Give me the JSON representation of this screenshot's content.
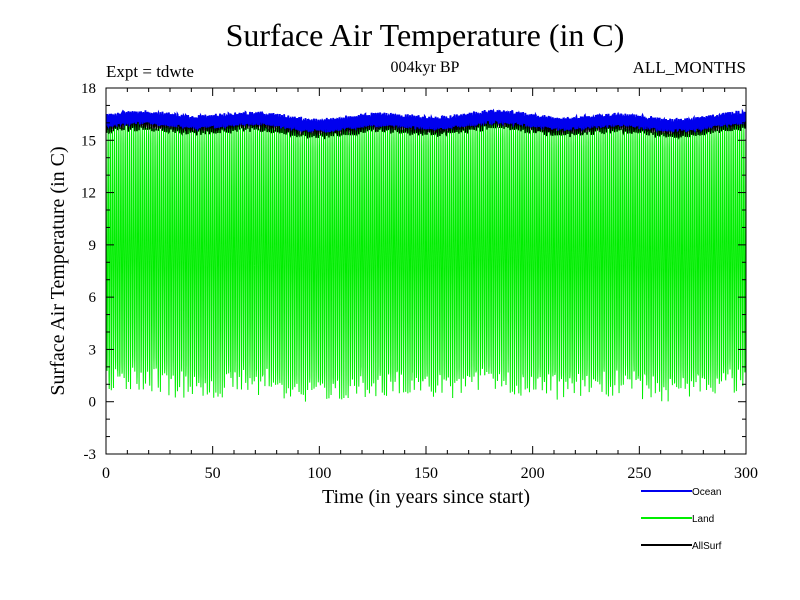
{
  "chart_data": {
    "type": "line",
    "title": "Surface Air Temperature (in C)",
    "subtitle": "004kyr BP",
    "experiment_label": "Expt = tdwte",
    "months_label": "ALL_MONTHS",
    "xlabel": "Time (in years since start)",
    "ylabel": "Surface Air Temperature (in C)",
    "xlim": [
      0,
      300
    ],
    "ylim": [
      -3,
      18
    ],
    "x_ticks": [
      0,
      50,
      100,
      150,
      200,
      250,
      300
    ],
    "x_tick_labels": [
      "0",
      "50",
      "100",
      "150",
      "200",
      "250",
      "300"
    ],
    "y_ticks": [
      -3,
      0,
      3,
      6,
      9,
      12,
      15,
      18
    ],
    "y_tick_labels": [
      "-3",
      "0",
      "3",
      "6",
      "9",
      "12",
      "15",
      "18"
    ],
    "grid": false,
    "legend_position": "bottom-right",
    "sampling": "monthly, 300 years",
    "series": [
      {
        "name": "Land",
        "color": "#00ee00",
        "seasonal_min_approx": 1.0,
        "seasonal_max_approx": 15.8,
        "notes": "annual cycle between ~0 and ~16 C"
      },
      {
        "name": "AllSurf",
        "color": "#000000",
        "seasonal_min_approx": 15.5,
        "seasonal_max_approx": 16.2
      },
      {
        "name": "Ocean",
        "color": "#0000ee",
        "seasonal_min_approx": 15.8,
        "seasonal_max_approx": 16.4
      }
    ]
  }
}
